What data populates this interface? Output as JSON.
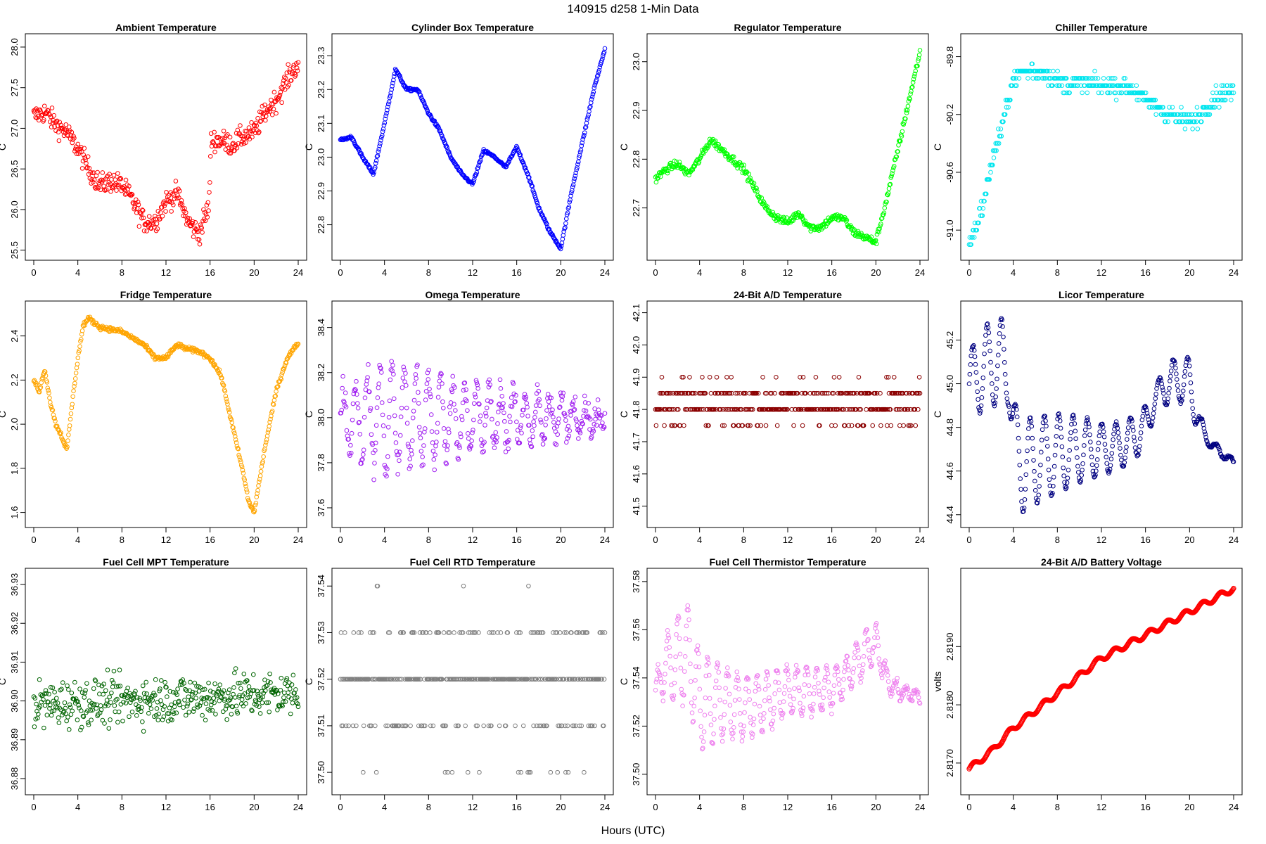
{
  "header": {
    "title": "140915   d258   1-Min Data",
    "xlabel": "Hours (UTC)"
  },
  "chart_data": [
    {
      "type": "scatter",
      "title": "Ambient Temperature",
      "ylabel": "C",
      "color": "#ff0000",
      "xlim": [
        0,
        24
      ],
      "ylim": [
        25.48,
        28.06
      ],
      "x_ticks": [
        "0",
        "4",
        "8",
        "12",
        "16",
        "20",
        "24"
      ],
      "y_ticks": [
        "25.5",
        "26.0",
        "26.5",
        "27.0",
        "27.5",
        "28.0"
      ],
      "x": [
        0,
        1,
        2,
        3,
        4,
        5,
        6,
        7,
        8,
        9,
        10,
        11,
        12,
        13,
        14,
        15,
        15.9,
        16.1,
        17,
        18,
        19,
        20,
        21,
        22,
        23,
        24
      ],
      "values": [
        27.15,
        27.2,
        27.05,
        26.95,
        26.75,
        26.5,
        26.3,
        26.35,
        26.3,
        26.1,
        25.85,
        25.85,
        26.1,
        26.2,
        25.85,
        25.7,
        26.05,
        26.85,
        26.85,
        26.8,
        26.9,
        26.95,
        27.2,
        27.35,
        27.6,
        27.8
      ],
      "noise": 0.13
    },
    {
      "type": "scatter",
      "title": "Cylinder Box Temperature",
      "ylabel": "C",
      "color": "#0000ff",
      "xlim": [
        0,
        24
      ],
      "ylim": [
        22.72,
        23.34
      ],
      "x_ticks": [
        "0",
        "4",
        "8",
        "12",
        "16",
        "20",
        "24"
      ],
      "y_ticks": [
        "22.8",
        "22.9",
        "23.0",
        "23.1",
        "23.2",
        "23.3"
      ],
      "x": [
        0,
        1,
        2,
        3,
        4,
        5,
        6,
        7,
        8,
        9,
        10,
        11,
        12,
        13,
        14,
        15,
        16,
        17,
        18,
        19,
        20,
        21,
        22,
        23,
        24
      ],
      "values": [
        23.05,
        23.06,
        23.0,
        22.95,
        23.1,
        23.26,
        23.2,
        23.2,
        23.13,
        23.08,
        23.0,
        22.95,
        22.92,
        23.02,
        23.0,
        22.97,
        23.03,
        22.95,
        22.85,
        22.78,
        22.73,
        22.9,
        23.05,
        23.2,
        23.32
      ],
      "noise": 0.004
    },
    {
      "type": "scatter",
      "title": "Regulator Temperature",
      "ylabel": "C",
      "color": "#00ff00",
      "xlim": [
        0,
        24
      ],
      "ylim": [
        22.61,
        23.04
      ],
      "x_ticks": [
        "0",
        "4",
        "8",
        "12",
        "16",
        "20",
        "24"
      ],
      "y_ticks": [
        "22.7",
        "22.8",
        "22.9",
        "23.0"
      ],
      "x": [
        0,
        1,
        2,
        3,
        4,
        5,
        6,
        7,
        8,
        9,
        10,
        11,
        12,
        13,
        14,
        15,
        16,
        17,
        18,
        19,
        20,
        21,
        22,
        23,
        24
      ],
      "values": [
        22.76,
        22.78,
        22.79,
        22.77,
        22.8,
        22.84,
        22.82,
        22.8,
        22.78,
        22.74,
        22.7,
        22.68,
        22.67,
        22.69,
        22.66,
        22.66,
        22.68,
        22.68,
        22.65,
        22.64,
        22.63,
        22.72,
        22.82,
        22.92,
        23.02
      ],
      "noise": 0.008
    },
    {
      "type": "scatter",
      "title": "Chiller Temperature",
      "ylabel": "C",
      "color": "#00e5ee",
      "xlim": [
        0,
        24
      ],
      "ylim": [
        -91.15,
        -89.7
      ],
      "x_ticks": [
        "0",
        "4",
        "8",
        "12",
        "16",
        "20",
        "24"
      ],
      "y_ticks": [
        "-91.0",
        "-90.6",
        "-90.2",
        "-89.8"
      ],
      "x": [
        0,
        0.5,
        1,
        1.5,
        2,
        2.5,
        3,
        3.5,
        4,
        5,
        6,
        7,
        8,
        9,
        10,
        11,
        12,
        13,
        14,
        15,
        16,
        17,
        18,
        19,
        20,
        21,
        22,
        23,
        24
      ],
      "values": [
        -91.1,
        -91.0,
        -90.9,
        -90.75,
        -90.55,
        -90.4,
        -90.3,
        -90.1,
        -89.95,
        -89.9,
        -89.9,
        -89.92,
        -89.98,
        -89.99,
        -89.98,
        -89.99,
        -90.0,
        -90.0,
        -90.0,
        -90.03,
        -90.1,
        -90.15,
        -90.2,
        -90.22,
        -90.25,
        -90.2,
        -90.1,
        -90.05,
        -90.05
      ],
      "noise": 0.06,
      "quantum": 0.05
    },
    {
      "type": "scatter",
      "title": "Fridge Temperature",
      "ylabel": "C",
      "color": "#ffa500",
      "xlim": [
        0,
        24
      ],
      "ylim": [
        1.57,
        2.52
      ],
      "x_ticks": [
        "0",
        "4",
        "8",
        "12",
        "16",
        "20",
        "24"
      ],
      "y_ticks": [
        "1.6",
        "1.8",
        "2.0",
        "2.2",
        "2.4"
      ],
      "x": [
        0,
        0.5,
        1,
        1.5,
        2,
        2.5,
        3,
        3.5,
        4,
        4.5,
        5,
        6,
        7,
        8,
        9,
        10,
        11,
        12,
        13,
        14,
        15,
        16,
        17,
        18,
        19,
        19.5,
        20,
        20.5,
        21,
        22,
        23,
        24
      ],
      "values": [
        2.2,
        2.15,
        2.25,
        2.1,
        2.0,
        1.95,
        1.88,
        2.1,
        2.3,
        2.45,
        2.48,
        2.44,
        2.43,
        2.42,
        2.39,
        2.36,
        2.3,
        2.3,
        2.36,
        2.34,
        2.33,
        2.3,
        2.22,
        2.0,
        1.78,
        1.65,
        1.6,
        1.75,
        1.9,
        2.15,
        2.3,
        2.37
      ],
      "noise": 0.01
    },
    {
      "type": "scatter",
      "title": "Omega Temperature",
      "ylabel": "C",
      "color": "#a020f0",
      "xlim": [
        0,
        24
      ],
      "ylim": [
        37.55,
        38.48
      ],
      "x_ticks": [
        "0",
        "4",
        "8",
        "12",
        "16",
        "20",
        "24"
      ],
      "y_ticks": [
        "37.6",
        "37.8",
        "38.0",
        "38.2",
        "38.4"
      ],
      "x": [
        0,
        4,
        8,
        12,
        16,
        20,
        24
      ],
      "values": [
        38.0,
        38.0,
        38.0,
        38.0,
        38.0,
        38.0,
        38.0
      ],
      "amp": [
        0.12,
        0.24,
        0.2,
        0.14,
        0.11,
        0.09,
        0.03
      ],
      "period": 1.1,
      "noise": 0.06
    },
    {
      "type": "scatter",
      "title": "24-Bit A/D Temperature",
      "ylabel": "C",
      "color": "#8b0000",
      "xlim": [
        0,
        24
      ],
      "ylim": [
        41.46,
        42.11
      ],
      "x_ticks": [
        "0",
        "4",
        "8",
        "12",
        "16",
        "20",
        "24"
      ],
      "y_ticks": [
        "41.5",
        "41.6",
        "41.7",
        "41.8",
        "41.9",
        "42.0",
        "42.1"
      ],
      "x": [
        0,
        24
      ],
      "values": [
        41.82,
        41.82
      ],
      "noise": 0.07,
      "quantum": 0.05
    },
    {
      "type": "scatter",
      "title": "Licor Temperature",
      "ylabel": "C",
      "color": "#000080",
      "xlim": [
        0,
        24
      ],
      "ylim": [
        44.38,
        45.34
      ],
      "x_ticks": [
        "0",
        "4",
        "8",
        "12",
        "16",
        "20",
        "24"
      ],
      "y_ticks": [
        "44.4",
        "44.6",
        "44.8",
        "45.0",
        "45.2"
      ],
      "x": [
        0,
        1,
        2,
        3,
        3.6,
        4.2,
        5,
        6,
        8,
        10,
        12,
        14,
        16,
        17,
        18,
        19,
        20,
        21,
        22,
        23,
        24
      ],
      "values": [
        45.0,
        45.05,
        45.1,
        45.1,
        45.0,
        44.7,
        44.62,
        44.65,
        44.68,
        44.7,
        44.7,
        44.72,
        44.8,
        44.95,
        45.0,
        45.02,
        45.0,
        44.8,
        44.72,
        44.68,
        44.64
      ],
      "amp": [
        0.15,
        0.18,
        0.2,
        0.2,
        0.1,
        0.2,
        0.22,
        0.2,
        0.18,
        0.15,
        0.12,
        0.1,
        0.1,
        0.05,
        0.1,
        0.1,
        0.12,
        0.05,
        0.02,
        0.02,
        0.01
      ],
      "period": 1.3,
      "noise": 0.006
    },
    {
      "type": "scatter",
      "title": "Fuel Cell MPT Temperature",
      "ylabel": "C",
      "color": "#006400",
      "xlim": [
        0,
        24
      ],
      "ylim": [
        36.878,
        36.932
      ],
      "x_ticks": [
        "0",
        "4",
        "8",
        "12",
        "16",
        "20",
        "24"
      ],
      "y_ticks": [
        "36.88",
        "36.89",
        "36.90",
        "36.91",
        "36.92",
        "36.93"
      ],
      "x": [
        0,
        24
      ],
      "values": [
        36.899,
        36.902
      ],
      "noise": 0.006
    },
    {
      "type": "scatter",
      "title": "Fuel Cell RTD Temperature",
      "ylabel": "C",
      "color": "#808080",
      "xlim": [
        0,
        24
      ],
      "ylim": [
        37.497,
        37.542
      ],
      "x_ticks": [
        "0",
        "4",
        "8",
        "12",
        "16",
        "20",
        "24"
      ],
      "y_ticks": [
        "37.50",
        "37.51",
        "37.52",
        "37.53",
        "37.54"
      ],
      "x": [
        0,
        24
      ],
      "values": [
        37.52,
        37.52
      ],
      "levels": [
        37.5,
        37.51,
        37.52,
        37.53,
        37.54
      ]
    },
    {
      "type": "scatter",
      "title": "Fuel Cell Thermistor Temperature",
      "ylabel": "C",
      "color": "#ee82ee",
      "xlim": [
        0,
        24
      ],
      "ylim": [
        37.495,
        37.582
      ],
      "x_ticks": [
        "0",
        "4",
        "8",
        "12",
        "16",
        "20",
        "24"
      ],
      "y_ticks": [
        "37.50",
        "37.52",
        "37.54",
        "37.56",
        "37.58"
      ],
      "x": [
        0,
        1,
        2,
        3,
        4,
        6,
        8,
        10,
        12,
        14,
        16,
        18,
        19,
        20,
        21,
        22,
        24
      ],
      "values": [
        37.535,
        37.545,
        37.548,
        37.55,
        37.53,
        37.53,
        37.528,
        37.53,
        37.535,
        37.535,
        37.535,
        37.545,
        37.55,
        37.555,
        37.54,
        37.535,
        37.532
      ],
      "amp": [
        0.005,
        0.012,
        0.018,
        0.02,
        0.02,
        0.015,
        0.013,
        0.012,
        0.01,
        0.01,
        0.008,
        0.008,
        0.01,
        0.007,
        0.004,
        0.003,
        0.002
      ],
      "period": 0.9,
      "noise": 0.002
    },
    {
      "type": "line",
      "title": "24-Bit A/D Battery Voltage",
      "ylabel": "volts",
      "color": "#ff0000",
      "xlim": [
        0,
        24
      ],
      "ylim": [
        2.8166,
        2.8202
      ],
      "x_ticks": [
        "0",
        "4",
        "8",
        "12",
        "16",
        "20",
        "24"
      ],
      "y_ticks": [
        "2.8170",
        "2.8180",
        "2.8190"
      ],
      "x": [
        0,
        2,
        4,
        6,
        8,
        10,
        12,
        14,
        16,
        18,
        20,
        22,
        24
      ],
      "values": [
        2.8169,
        2.8172,
        2.8176,
        2.8179,
        2.8182,
        2.8185,
        2.8188,
        2.819,
        2.8192,
        2.8194,
        2.8196,
        2.8198,
        2.82
      ]
    }
  ]
}
